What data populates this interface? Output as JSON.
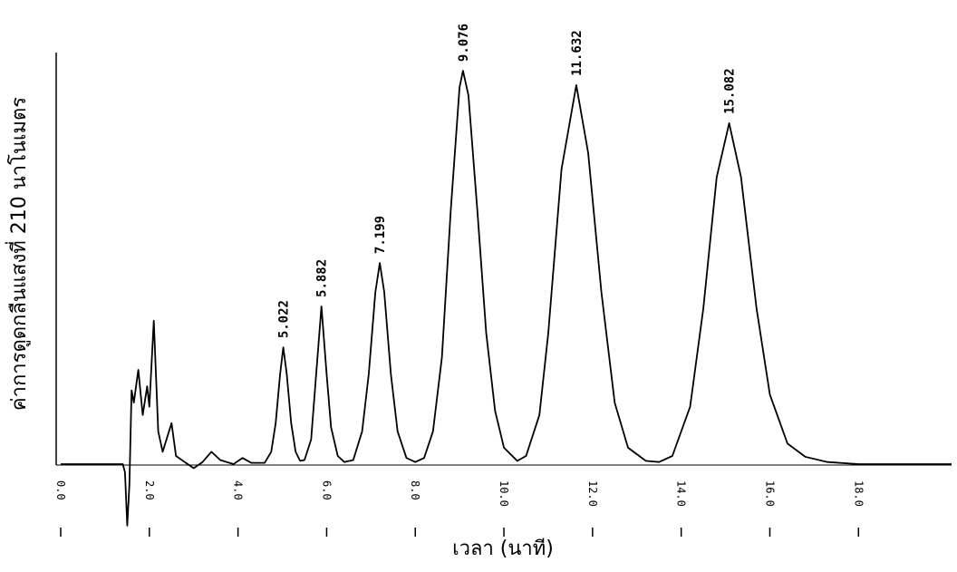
{
  "chart_data": {
    "type": "line",
    "x_label": "เวลา (นาที)",
    "y_label": "ค่าการดูดกลืนแสงที่ 210 นาโนเมตร",
    "xlim": [
      0,
      20.1
    ],
    "ylim": [
      0,
      100
    ],
    "xticks": [
      {
        "value": 0,
        "label": "0.0"
      },
      {
        "value": 2,
        "label": "2.0"
      },
      {
        "value": 4,
        "label": "4.0"
      },
      {
        "value": 6,
        "label": "6.0"
      },
      {
        "value": 8,
        "label": "8.0"
      },
      {
        "value": 10,
        "label": "10.0"
      },
      {
        "value": 12,
        "label": "12.0"
      },
      {
        "value": 14,
        "label": "14.0"
      },
      {
        "value": 16,
        "label": "16.0"
      },
      {
        "value": 18,
        "label": "18.0"
      }
    ],
    "x": [
      0,
      1.4,
      1.45,
      1.5,
      1.55,
      1.6,
      1.65,
      1.75,
      1.85,
      1.95,
      2.0,
      2.1,
      2.2,
      2.3,
      2.5,
      2.6,
      2.8,
      3.0,
      3.2,
      3.4,
      3.6,
      3.9,
      4.1,
      4.3,
      4.6,
      4.75,
      4.85,
      4.95,
      5.022,
      5.1,
      5.2,
      5.3,
      5.4,
      5.5,
      5.65,
      5.75,
      5.882,
      6.0,
      6.1,
      6.25,
      6.4,
      6.6,
      6.8,
      6.95,
      7.1,
      7.199,
      7.3,
      7.45,
      7.6,
      7.8,
      8.0,
      8.2,
      8.4,
      8.6,
      8.8,
      9.0,
      9.076,
      9.2,
      9.4,
      9.6,
      9.8,
      10.0,
      10.3,
      10.5,
      10.8,
      11.0,
      11.3,
      11.632,
      11.9,
      12.2,
      12.5,
      12.8,
      13.2,
      13.5,
      13.8,
      14.2,
      14.5,
      14.8,
      15.082,
      15.35,
      15.7,
      16.0,
      16.4,
      16.8,
      17.3,
      18.0,
      20.1
    ],
    "series": [
      {
        "color": "#000000",
        "values": [
          0,
          0,
          -2,
          -15,
          -5,
          18,
          15,
          23,
          12,
          19,
          14,
          35,
          8,
          3,
          10,
          2,
          0.5,
          -1,
          0.5,
          3,
          1,
          0,
          1.5,
          0.3,
          0.3,
          3,
          10,
          22,
          28.5,
          22,
          10,
          3,
          0.8,
          1,
          6,
          20,
          38.5,
          22,
          9,
          2,
          0.5,
          1,
          8,
          22,
          42,
          49.1,
          42,
          22,
          8,
          1.5,
          0.5,
          1.5,
          8,
          26,
          62,
          92,
          96,
          90,
          62,
          32,
          13,
          4,
          0.8,
          2,
          12,
          32,
          72,
          92.5,
          76,
          42,
          15,
          4,
          0.8,
          0.5,
          2,
          14,
          38,
          70,
          83.2,
          70,
          38,
          17,
          5,
          1.8,
          0.5,
          0,
          0
        ]
      }
    ],
    "peak_labels": [
      5.022,
      5.882,
      7.199,
      9.076,
      11.632,
      15.082
    ]
  }
}
